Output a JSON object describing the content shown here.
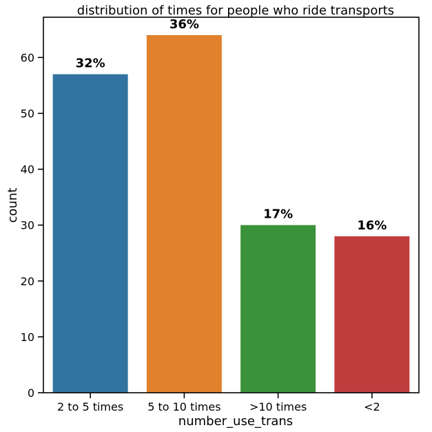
{
  "chart_data": {
    "type": "bar",
    "title": "distribution of times for people who ride transports",
    "xlabel": "number_use_trans",
    "ylabel": "count",
    "categories": [
      "2 to 5 times",
      "5 to 10 times",
      ">10 times",
      "<2"
    ],
    "values": [
      57,
      64,
      30,
      28
    ],
    "data_labels": [
      "32%",
      "36%",
      "17%",
      "16%"
    ],
    "colors": [
      "#3274a1",
      "#e1812c",
      "#3a923a",
      "#c03d3e"
    ],
    "ylim": [
      0,
      67.2
    ],
    "yticks": [
      0,
      10,
      20,
      30,
      40,
      50,
      60
    ],
    "grid": false,
    "legend": "none"
  }
}
